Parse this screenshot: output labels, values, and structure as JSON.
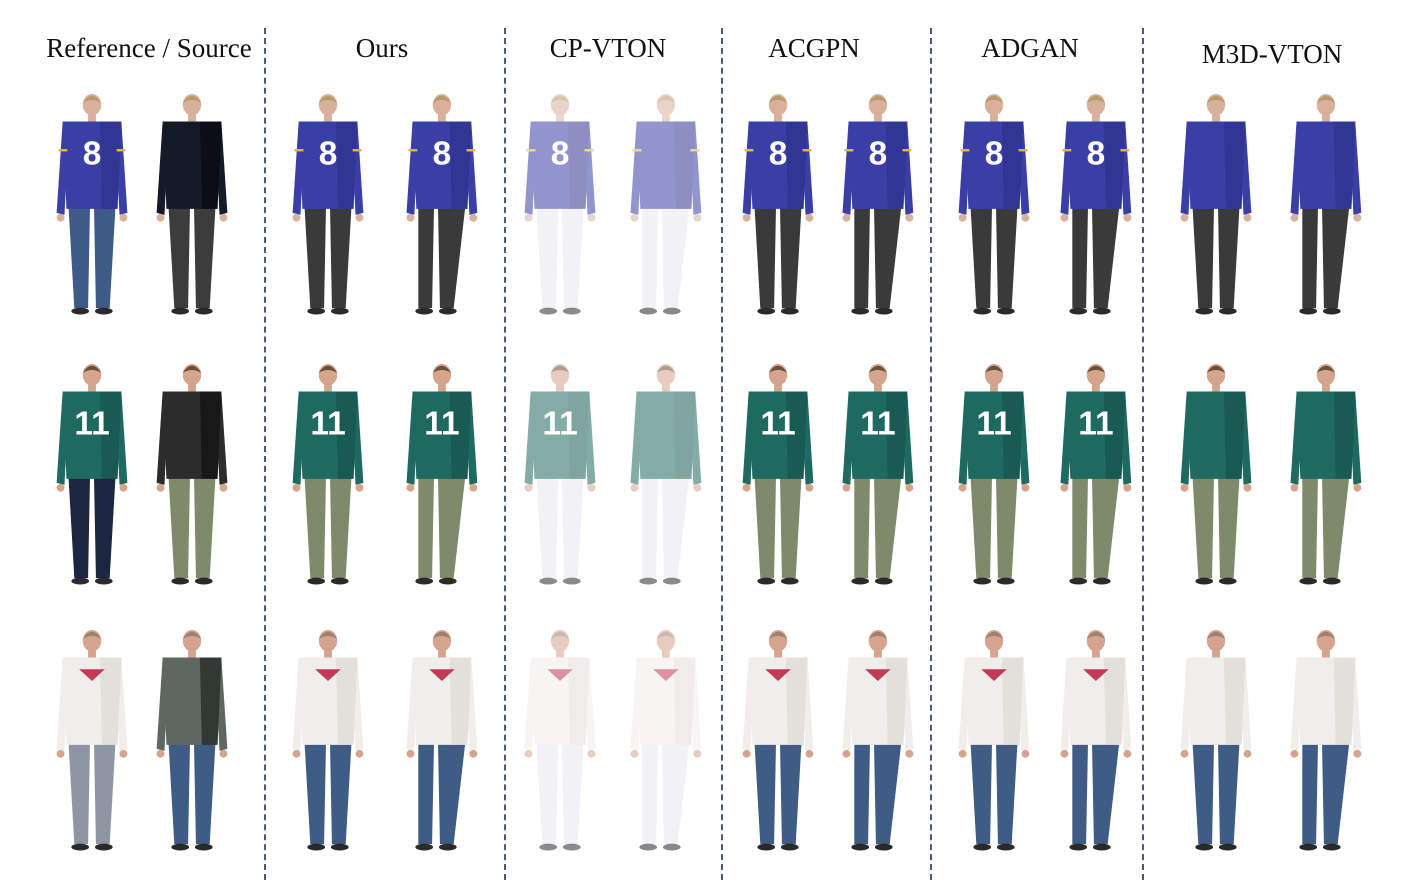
{
  "figure": {
    "headers": [
      "Reference / Source",
      "Ours",
      "CP-VTON",
      "ACGPN",
      "ADGAN",
      "M3D-VTON"
    ],
    "rows": [
      {
        "shirt": "#3a3fa6",
        "shirt_shade": "#272b7c",
        "sleeve": "#3a3fa6",
        "number": "8",
        "number_color": "#ffffff",
        "trim": "#e0b640",
        "ref_pants": "#3e5a86",
        "pants": "#3a3a3a",
        "src_shirt": "#141a28",
        "src_pants": "#3c3c3c",
        "skin": "#d9b09c",
        "hair": "#b89a6a",
        "shoe": "#2a2a2a"
      },
      {
        "shirt": "#1e6a60",
        "shirt_shade": "#134a43",
        "sleeve": "#1e6a60",
        "number": "11",
        "number_color": "#ffffff",
        "trim": "#1e6a60",
        "ref_pants": "#1d2640",
        "pants": "#7e8a6a",
        "src_shirt": "#2c2c2c",
        "src_pants": "#7e8a6a",
        "skin": "#d4a48c",
        "hair": "#6a5238",
        "shoe": "#2a2a2a"
      },
      {
        "shirt": "#f0eeea",
        "shirt_shade": "#d2cfca",
        "sleeve": "#f0eeea",
        "number": "",
        "number_color": "#d23a5a",
        "trim": "#c23a55",
        "ref_pants": "#8e96a4",
        "pants": "#3e5c84",
        "src_shirt": "#5c6860",
        "src_pants": "#3e5c84",
        "skin": "#d6a48e",
        "hair": "#9a8270",
        "shoe": "#2a2a2a"
      }
    ]
  }
}
